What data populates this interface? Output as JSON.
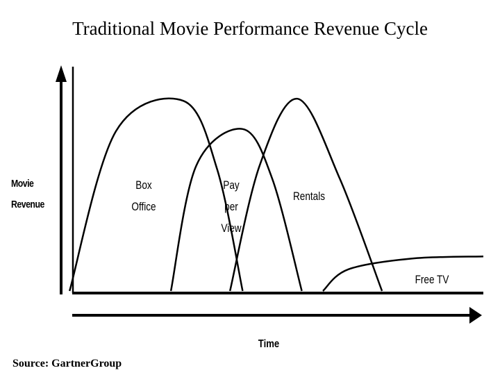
{
  "chart_data": {
    "type": "area",
    "title": "Traditional Movie Performance Revenue Cycle",
    "xlabel": "Time",
    "ylabel": "Movie Revenue",
    "grid": false,
    "legend": "none",
    "source": "Source: GartnerGroup",
    "series": [
      {
        "name": "Box Office",
        "label_lines": [
          "Box",
          "Office"
        ],
        "points": [
          [
            0.02,
            0
          ],
          [
            0.13,
            0.74
          ],
          [
            0.29,
            0.88
          ],
          [
            0.37,
            0.56
          ],
          [
            0.43,
            0
          ]
        ]
      },
      {
        "name": "Pay per View",
        "label_lines": [
          "Pay",
          "per",
          "View"
        ],
        "points": [
          [
            0.26,
            0
          ],
          [
            0.32,
            0.58
          ],
          [
            0.43,
            0.75
          ],
          [
            0.5,
            0.52
          ],
          [
            0.57,
            0
          ]
        ]
      },
      {
        "name": "Rentals",
        "label_lines": [
          "Rentals"
        ],
        "points": [
          [
            0.4,
            0
          ],
          [
            0.47,
            0.58
          ],
          [
            0.56,
            0.89
          ],
          [
            0.66,
            0.52
          ],
          [
            0.76,
            0
          ]
        ]
      },
      {
        "name": "Free TV",
        "label_lines": [
          "Free TV"
        ],
        "points": [
          [
            0.62,
            0
          ],
          [
            0.68,
            0.1
          ],
          [
            0.83,
            0.15
          ],
          [
            1.0,
            0.16
          ]
        ]
      }
    ]
  }
}
